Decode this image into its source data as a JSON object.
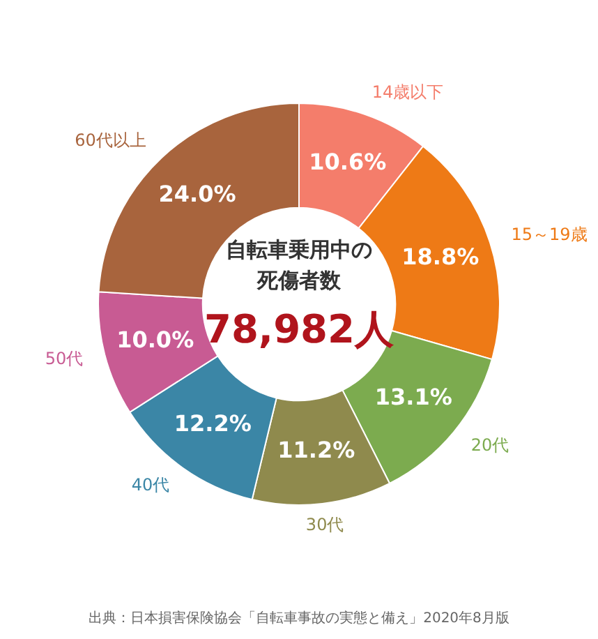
{
  "chart_data": {
    "type": "donut",
    "title": "自転車乗用中の",
    "subtitle": "死傷者数",
    "categories": [
      "14歳以下",
      "15～19歳",
      "20代",
      "30代",
      "40代",
      "50代",
      "60代以上"
    ],
    "values": [
      10.6,
      18.8,
      13.1,
      11.2,
      12.2,
      10.0,
      24.0
    ],
    "value_labels": [
      "10.6%",
      "18.8%",
      "13.1%",
      "11.2%",
      "12.2%",
      "10.0%",
      "24.0%"
    ],
    "colors": [
      "#f47d6b",
      "#ee7a16",
      "#7cab4f",
      "#8f8a4d",
      "#3b86a6",
      "#c85b93",
      "#a8643d"
    ],
    "annotations": [
      "78,982人",
      "出典：日本損害保険協会「自転車事故の実態と備え」2020年8月版"
    ],
    "legend": false
  }
}
